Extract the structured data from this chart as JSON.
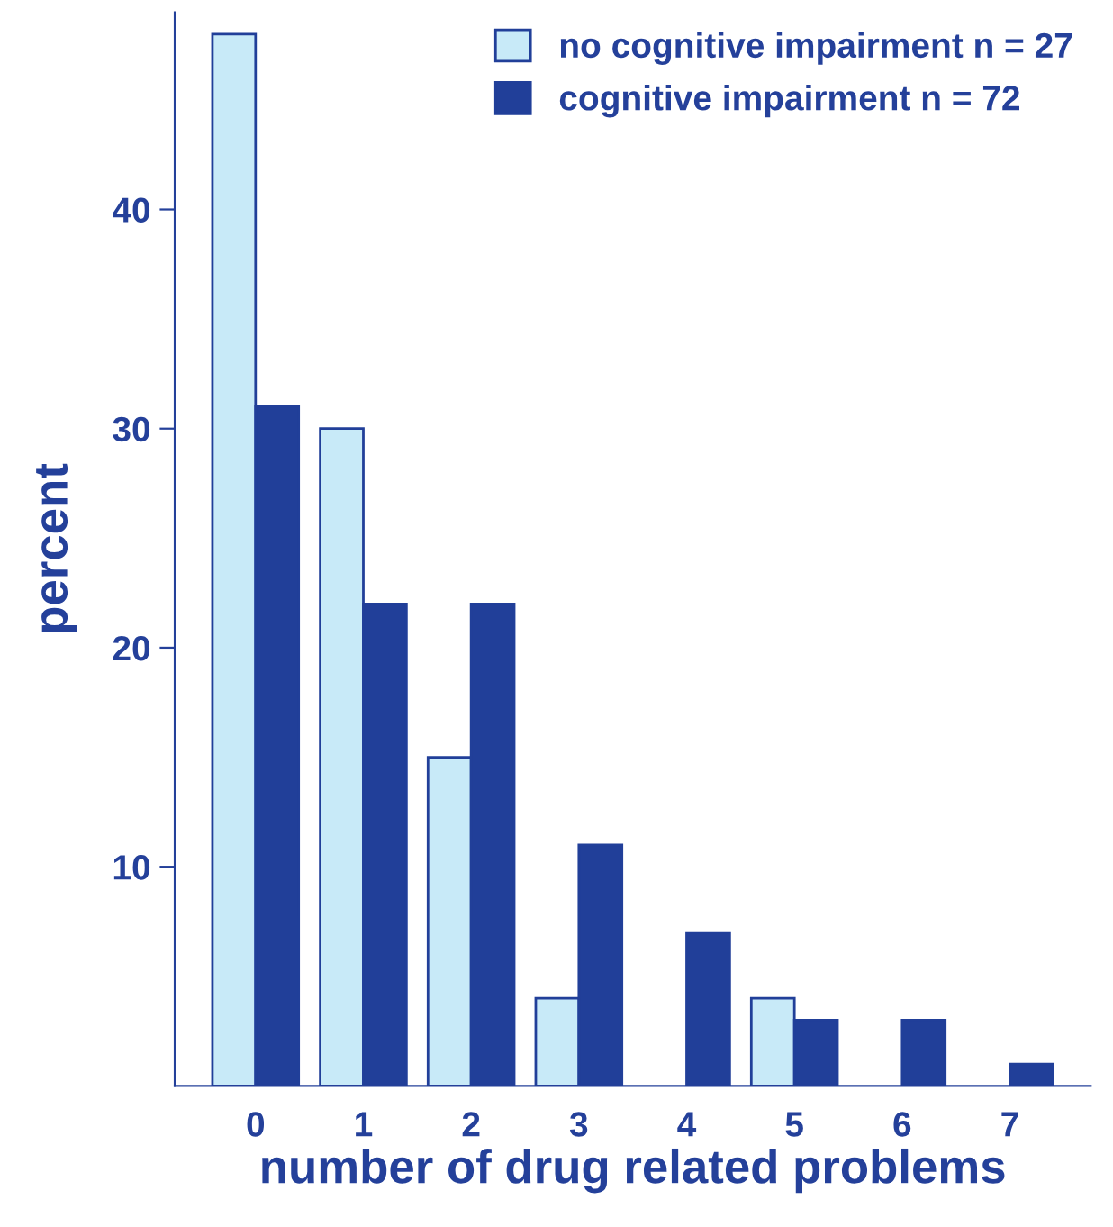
{
  "chart_data": {
    "type": "bar",
    "xlabel": "number of drug related problems",
    "ylabel": "percent",
    "categories": [
      "0",
      "1",
      "2",
      "3",
      "4",
      "5",
      "6",
      "7"
    ],
    "series": [
      {
        "name": "no cognitive impairment n = 27",
        "color": "#c8eaf8",
        "values": [
          48,
          30,
          15,
          4,
          null,
          4,
          null,
          null
        ]
      },
      {
        "name": "cognitive impairment n = 72",
        "color": "#213f99",
        "values": [
          31,
          22,
          22,
          11,
          7,
          3,
          3,
          1
        ]
      }
    ],
    "ylim": [
      0,
      49
    ],
    "yticks": [
      10,
      20,
      30,
      40
    ],
    "grid": false,
    "legend": "top right"
  }
}
